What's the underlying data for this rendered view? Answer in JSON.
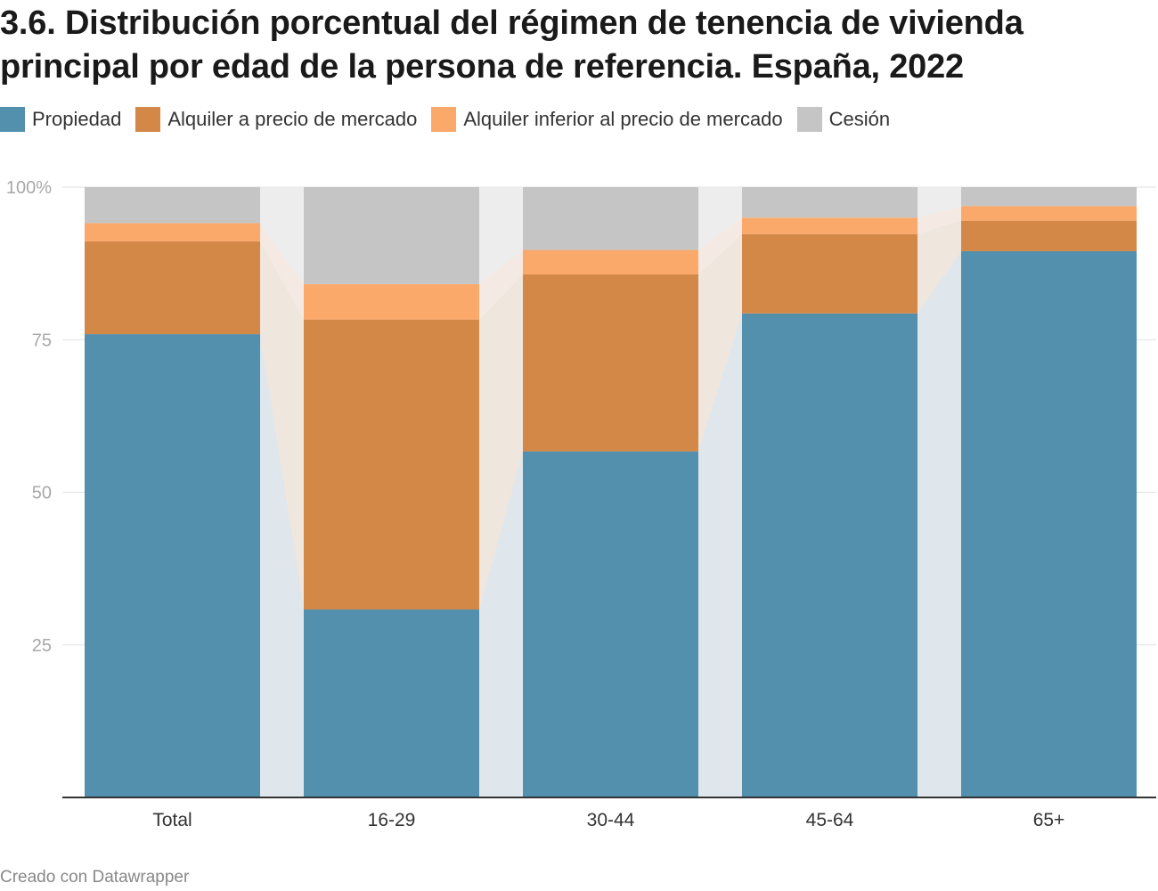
{
  "title": "3.6. Distribución porcentual del régimen de tenencia de vivienda principal por edad de la persona de referencia. España, 2022",
  "footer": "Creado con Datawrapper",
  "chart_data": {
    "type": "stacked-bar",
    "title": "3.6. Distribución porcentual del régimen de tenencia de vivienda principal por edad de la persona de referencia. España, 2022",
    "categories": [
      "Total",
      "16-29",
      "30-44",
      "45-64",
      "65+"
    ],
    "series": [
      {
        "name": "Propiedad",
        "color": "#5290ae",
        "values": [
          75.9,
          30.8,
          56.7,
          79.3,
          89.5
        ]
      },
      {
        "name": "Alquiler a precio de mercado",
        "color": "#d38847",
        "values": [
          15.2,
          47.5,
          29.0,
          13.0,
          5.0
        ]
      },
      {
        "name": "Alquiler inferior al precio de mercado",
        "color": "#faa96a",
        "values": [
          3.0,
          5.8,
          4.0,
          2.7,
          2.4
        ]
      },
      {
        "name": "Cesión",
        "color": "#c5c5c5",
        "values": [
          5.9,
          15.9,
          10.3,
          5.0,
          3.1
        ]
      }
    ],
    "yticks": [
      {
        "value": 100,
        "label": "100%"
      },
      {
        "value": 75,
        "label": "75"
      },
      {
        "value": 50,
        "label": "50"
      },
      {
        "value": 25,
        "label": "25"
      }
    ],
    "ylim": [
      0,
      100
    ],
    "xlabel": "",
    "ylabel": "",
    "legend_position": "top-left",
    "grid": true
  }
}
